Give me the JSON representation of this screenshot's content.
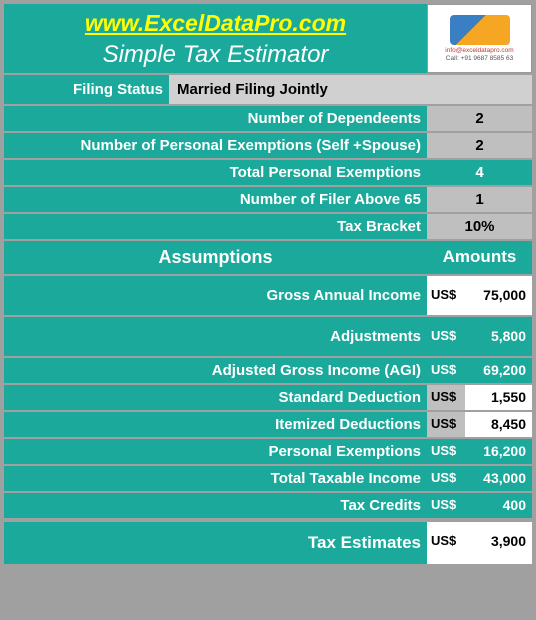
{
  "header": {
    "url": "www.ExcelDataPro.com",
    "title": "Simple Tax Estimator",
    "logo_email": "info@exceldatapro.com",
    "logo_call": "Call: +91 9687 8585 63"
  },
  "filing_status": {
    "label": "Filing Status",
    "value": "Married Filing Jointly"
  },
  "top_rows": [
    {
      "label": "Number of Dependeents",
      "value": "2",
      "style": "gray"
    },
    {
      "label": "Number of Personal Exemptions (Self +Spouse)",
      "value": "2",
      "style": "gray"
    },
    {
      "label": "Total Personal Exemptions",
      "value": "4",
      "style": "teal"
    },
    {
      "label": "Number of Filer Above 65",
      "value": "1",
      "style": "gray"
    },
    {
      "label": "Tax Bracket",
      "value": "10%",
      "style": "gray"
    }
  ],
  "section_header": {
    "left": "Assumptions",
    "right": "Amounts"
  },
  "amount_rows": [
    {
      "label": "Gross Annual Income",
      "cur": "US$",
      "num": "75,000",
      "cur_style": "white",
      "num_style": "white",
      "tall": true
    },
    {
      "label": "Adjustments",
      "cur": "US$",
      "num": "5,800",
      "cur_style": "teal",
      "num_style": "teal",
      "tall": true
    },
    {
      "label": "Adjusted Gross Income (AGI)",
      "cur": "US$",
      "num": "69,200",
      "cur_style": "teal",
      "num_style": "teal",
      "tall": false
    },
    {
      "label": "Standard Deduction",
      "cur": "US$",
      "num": "1,550",
      "cur_style": "gray",
      "num_style": "white",
      "tall": false
    },
    {
      "label": "Itemized Deductions",
      "cur": "US$",
      "num": "8,450",
      "cur_style": "gray",
      "num_style": "white",
      "tall": false
    },
    {
      "label": "Personal Exemptions",
      "cur": "US$",
      "num": "16,200",
      "cur_style": "teal",
      "num_style": "teal",
      "tall": false
    },
    {
      "label": "Total Taxable Income",
      "cur": "US$",
      "num": "43,000",
      "cur_style": "teal",
      "num_style": "teal",
      "tall": false
    },
    {
      "label": "Tax Credits",
      "cur": "US$",
      "num": "400",
      "cur_style": "teal",
      "num_style": "teal",
      "tall": false
    },
    {
      "label": "Tax Estimates",
      "cur": "US$",
      "num": "3,900",
      "cur_style": "white",
      "num_style": "white",
      "tall": true
    }
  ],
  "colors": {
    "teal": "#1aa99a",
    "gray_bg": "#a0a0a0",
    "cell_gray": "#bfbfbf",
    "url_yellow": "#ffff00"
  }
}
